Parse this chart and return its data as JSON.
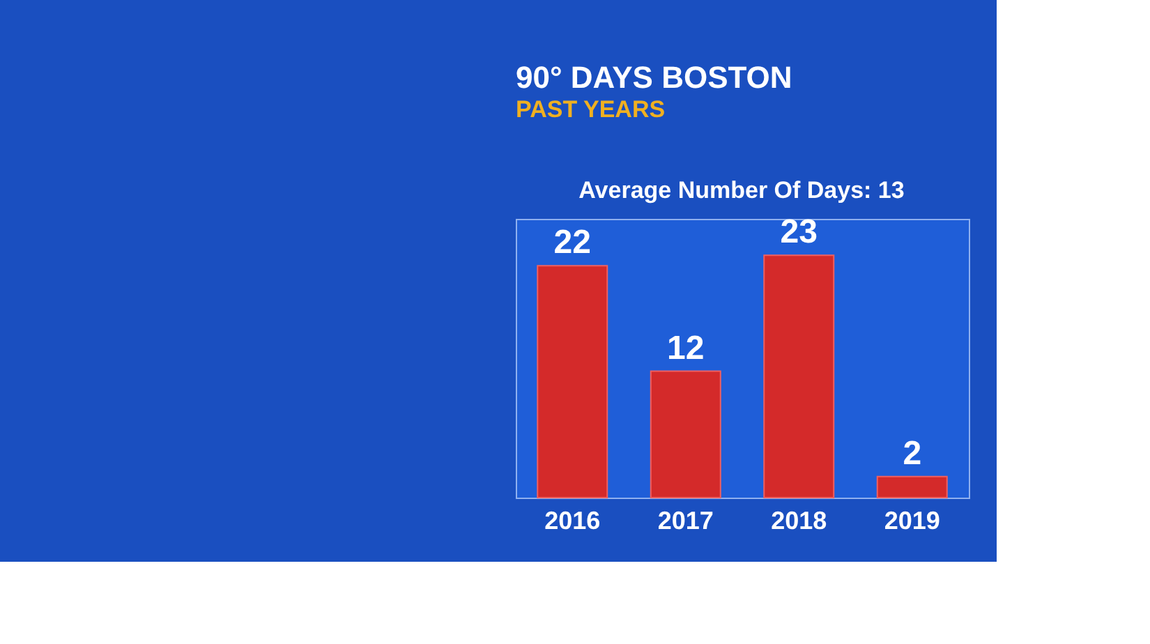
{
  "chart_data": {
    "type": "bar",
    "title": "90° DAYS BOSTON",
    "subtitle": "PAST YEARS",
    "annotations": [
      "Average Number Of Days: 13"
    ],
    "categories": [
      "2016",
      "2017",
      "2018",
      "2019"
    ],
    "values": [
      22,
      12,
      23,
      2
    ],
    "color": "#d42a2a",
    "data_labels": true
  }
}
